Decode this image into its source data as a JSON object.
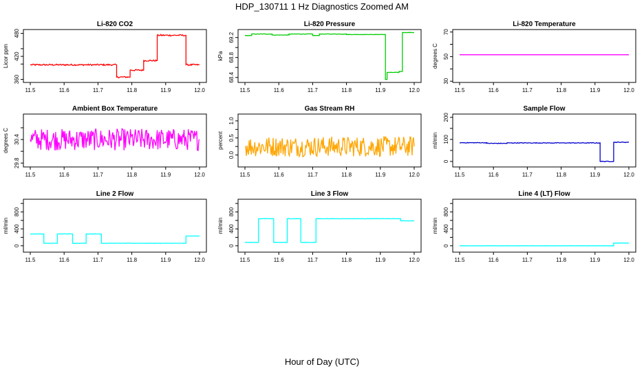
{
  "figure": {
    "title": "HDP_130711  1 Hz Diagnostics Zoomed AM",
    "xlabel": "Hour of Day (UTC)"
  },
  "chart_data": [
    {
      "type": "line",
      "title": "Li-820 CO2",
      "ylabel": "Licor ppm",
      "color": "#ff0000",
      "xlim": [
        11.5,
        12.0
      ],
      "ylim": [
        352,
        490
      ],
      "xticks": [
        "11.5",
        "11.6",
        "11.7",
        "11.8",
        "11.9",
        "12.0"
      ],
      "yticks": [
        360,
        420,
        480
      ],
      "ytick_labels": [
        "360",
        "420",
        "480"
      ],
      "ytick_sub": [
        400,
        440
      ],
      "series": [
        {
          "x": [
            11.5,
            11.755,
            11.755,
            11.795,
            11.795,
            11.835,
            11.835,
            11.875,
            11.875,
            11.96,
            11.96,
            12.0
          ],
          "values": [
            398,
            398,
            366,
            366,
            384,
            384,
            409,
            409,
            475,
            475,
            398,
            398
          ],
          "noise": 2
        }
      ]
    },
    {
      "type": "line",
      "title": "Li-820 Pressure",
      "ylabel": "kPa",
      "color": "#00cc00",
      "xlim": [
        11.5,
        12.0
      ],
      "ylim": [
        68.3,
        69.36
      ],
      "xticks": [
        "11.5",
        "11.6",
        "11.7",
        "11.8",
        "11.9",
        "12.0"
      ],
      "yticks": [
        68.4,
        68.8,
        69.2
      ],
      "ytick_labels": [
        "68.4",
        "68.8",
        "69.2"
      ],
      "ytick_sub": [
        68.6,
        69.0
      ],
      "series": [
        {
          "x": [
            11.5,
            11.52,
            11.52,
            11.58,
            11.58,
            11.63,
            11.63,
            11.7,
            11.7,
            11.72,
            11.72,
            11.8,
            11.8,
            11.915,
            11.915,
            11.92,
            11.92,
            11.955,
            11.955,
            11.965,
            11.965,
            12.0
          ],
          "values": [
            69.24,
            69.24,
            69.27,
            69.27,
            69.25,
            69.25,
            69.27,
            69.27,
            69.24,
            69.24,
            69.27,
            69.27,
            69.26,
            69.26,
            68.36,
            68.36,
            68.5,
            68.5,
            68.52,
            68.52,
            69.3,
            69.3
          ],
          "noise": 0.004
        }
      ]
    },
    {
      "type": "line",
      "title": "Li-820 Temperature",
      "ylabel": "degrees C",
      "color": "#ff00ff",
      "xlim": [
        11.5,
        12.0
      ],
      "ylim": [
        29,
        72
      ],
      "xticks": [
        "11.5",
        "11.6",
        "11.7",
        "11.8",
        "11.9",
        "12.0"
      ],
      "yticks": [
        30,
        50,
        70
      ],
      "ytick_labels": [
        "30",
        "50",
        "70"
      ],
      "ytick_sub": [
        40,
        60
      ],
      "series": [
        {
          "x": [
            11.5,
            12.0
          ],
          "values": [
            51.5,
            51.5
          ],
          "noise": 0
        }
      ]
    },
    {
      "type": "line",
      "title": "Ambient Box Temperature",
      "ylabel": "degrees C",
      "color": "#ff00ff",
      "xlim": [
        11.5,
        12.0
      ],
      "ylim": [
        29.7,
        31.05
      ],
      "xticks": [
        "11.5",
        "11.6",
        "11.7",
        "11.8",
        "11.9",
        "12.0"
      ],
      "yticks": [
        29.8,
        30.4
      ],
      "ytick_labels": [
        "29.8",
        "30.4"
      ],
      "ytick_sub": [
        30.1,
        30.7
      ],
      "series": [
        {
          "x": [
            11.5,
            12.0
          ],
          "values": [
            30.4,
            30.4
          ],
          "noise": 0.28
        }
      ]
    },
    {
      "type": "line",
      "title": "Gas Stream RH",
      "ylabel": "percent",
      "color": "#ffa500",
      "xlim": [
        11.5,
        12.0
      ],
      "ylim": [
        -0.35,
        1.2
      ],
      "xticks": [
        "11.5",
        "11.6",
        "11.7",
        "11.8",
        "11.9",
        "12.0"
      ],
      "yticks": [
        0.0,
        0.5,
        1.0
      ],
      "ytick_labels": [
        "0.0",
        "0.5",
        "1.0"
      ],
      "ytick_sub": [
        0.25,
        0.75
      ],
      "series": [
        {
          "x": [
            11.5,
            12.0
          ],
          "values": [
            0.25,
            0.25
          ],
          "noise": 0.3
        }
      ]
    },
    {
      "type": "line",
      "title": "Sample Flow",
      "ylabel": "ml/min",
      "color": "#0000cc",
      "xlim": [
        11.5,
        12.0
      ],
      "ylim": [
        -25,
        215
      ],
      "xticks": [
        "11.5",
        "11.6",
        "11.7",
        "11.8",
        "11.9",
        "12.0"
      ],
      "yticks": [
        0,
        100,
        200
      ],
      "ytick_labels": [
        "0",
        "100",
        "200"
      ],
      "ytick_sub": [
        50,
        150
      ],
      "series": [
        {
          "x": [
            11.5,
            11.58,
            11.58,
            11.64,
            11.64,
            11.915,
            11.915,
            11.955,
            11.955,
            12.0
          ],
          "values": [
            85,
            85,
            82,
            82,
            84,
            84,
            0,
            0,
            87,
            87
          ],
          "noise": 1.5
        }
      ]
    },
    {
      "type": "line",
      "title": "Line 2 Flow",
      "ylabel": "ml/min",
      "color": "#00ffff",
      "xlim": [
        11.5,
        12.0
      ],
      "ylim": [
        -150,
        1100
      ],
      "xticks": [
        "11.5",
        "11.6",
        "11.7",
        "11.8",
        "11.9",
        "12.0"
      ],
      "yticks": [
        0,
        400,
        800
      ],
      "ytick_labels": [
        "0",
        "400",
        "800"
      ],
      "ytick_sub": [
        200,
        600,
        1000
      ],
      "series": [
        {
          "x": [
            11.5,
            11.54,
            11.54,
            11.58,
            11.58,
            11.625,
            11.625,
            11.665,
            11.665,
            11.71,
            11.71,
            11.96,
            11.96,
            12.0
          ],
          "values": [
            280,
            280,
            60,
            60,
            280,
            280,
            60,
            60,
            280,
            280,
            60,
            60,
            230,
            230
          ],
          "noise": 4
        }
      ]
    },
    {
      "type": "line",
      "title": "Line 3 Flow",
      "ylabel": "ml/min",
      "color": "#00ffff",
      "xlim": [
        11.5,
        12.0
      ],
      "ylim": [
        -150,
        1100
      ],
      "xticks": [
        "11.5",
        "11.6",
        "11.7",
        "11.8",
        "11.9",
        "12.0"
      ],
      "yticks": [
        0,
        400,
        800
      ],
      "ytick_labels": [
        "0",
        "400",
        "800"
      ],
      "ytick_sub": [
        200,
        600,
        1000
      ],
      "series": [
        {
          "x": [
            11.5,
            11.54,
            11.54,
            11.585,
            11.585,
            11.625,
            11.625,
            11.665,
            11.665,
            11.71,
            11.71,
            11.96,
            11.96,
            12.0
          ],
          "values": [
            80,
            80,
            640,
            640,
            80,
            80,
            640,
            640,
            80,
            80,
            640,
            640,
            590,
            590
          ],
          "noise": 4
        }
      ]
    },
    {
      "type": "line",
      "title": "Line 4 (LT) Flow",
      "ylabel": "ml/min",
      "color": "#00ffff",
      "xlim": [
        11.5,
        12.0
      ],
      "ylim": [
        -150,
        1100
      ],
      "xticks": [
        "11.5",
        "11.6",
        "11.7",
        "11.8",
        "11.9",
        "12.0"
      ],
      "yticks": [
        0,
        400,
        800
      ],
      "ytick_labels": [
        "0",
        "400",
        "800"
      ],
      "ytick_sub": [
        200,
        600,
        1000
      ],
      "series": [
        {
          "x": [
            11.5,
            11.955,
            11.955,
            12.0
          ],
          "values": [
            0,
            0,
            65,
            65
          ],
          "noise": 2
        }
      ]
    }
  ]
}
